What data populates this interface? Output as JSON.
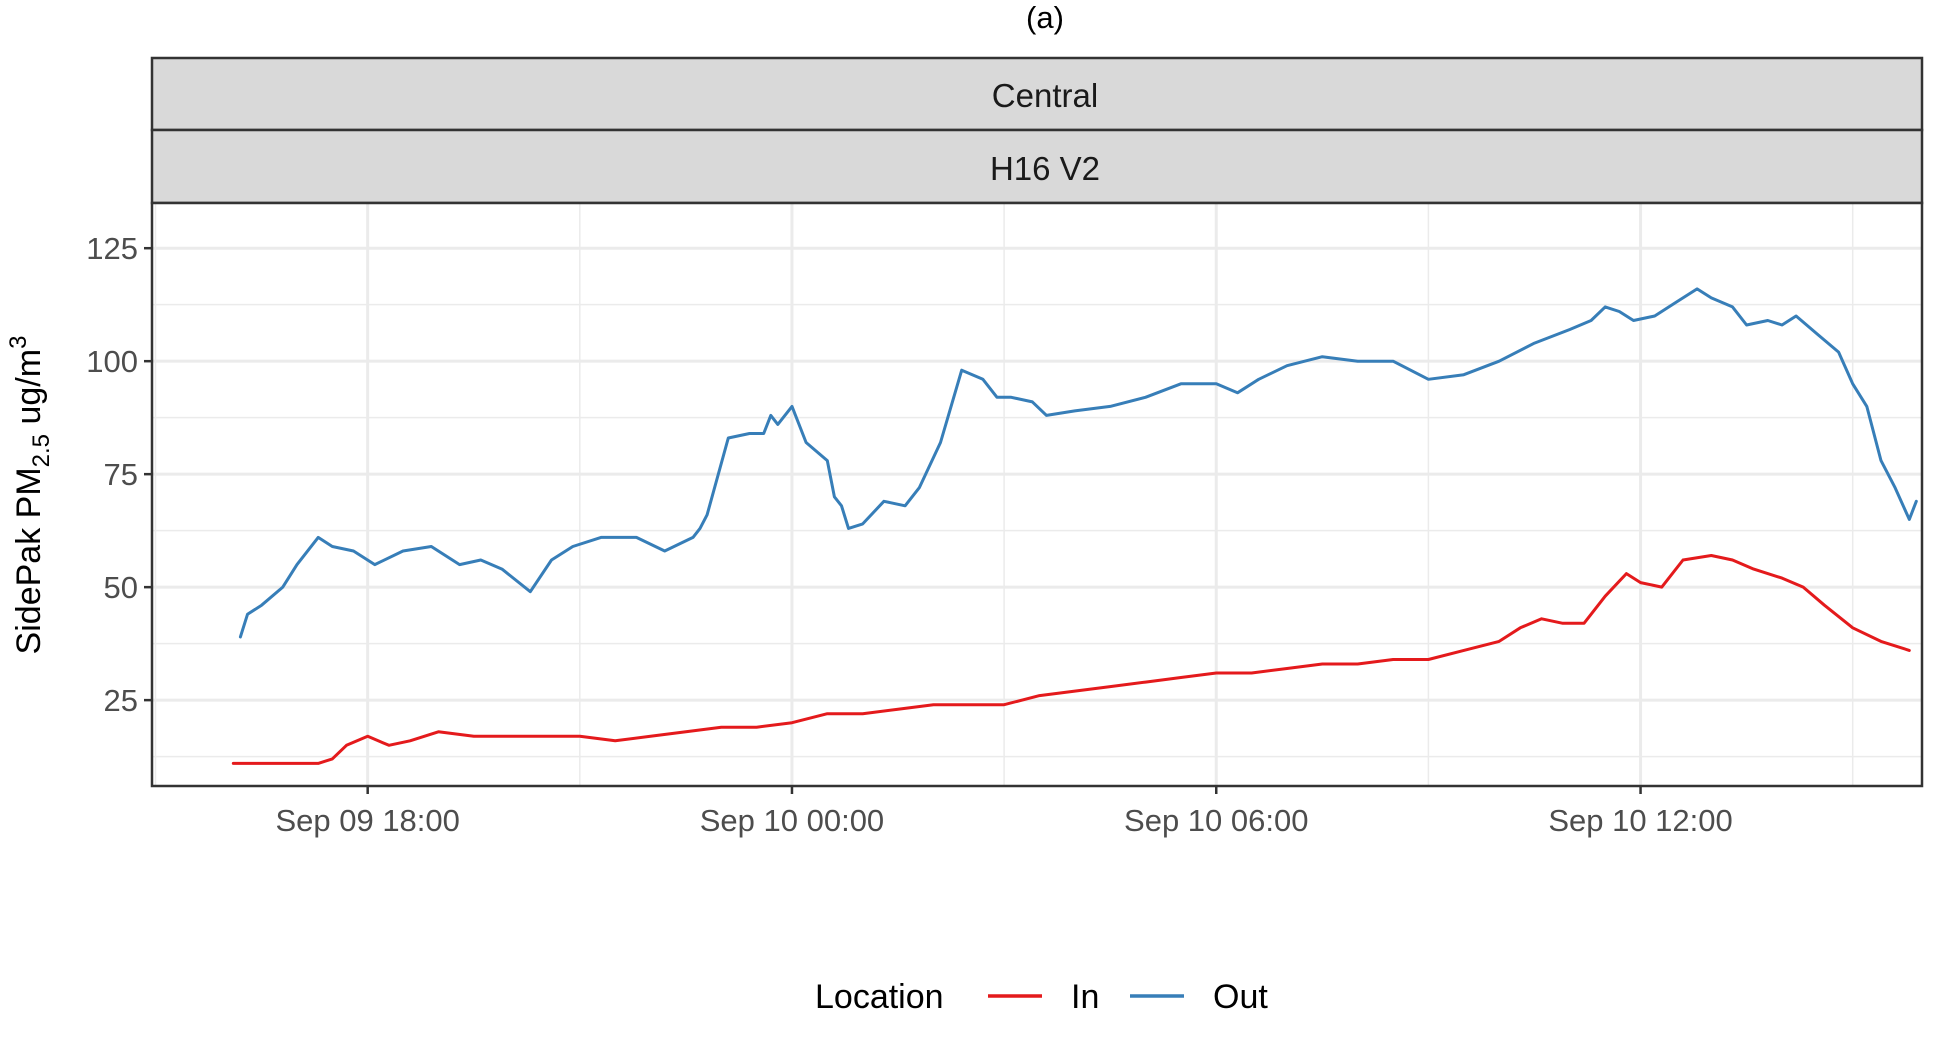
{
  "chart_data": {
    "type": "line",
    "title": "(a)",
    "facet_labels": [
      "Central",
      "H16 V2"
    ],
    "ylabel": {
      "main": "SidePak PM",
      "sub": "2.5",
      "unit": " ug/m",
      "sup": "3"
    },
    "y_ticks": [
      25,
      50,
      75,
      100,
      125
    ],
    "ylim": [
      6,
      135
    ],
    "x_ticks": [
      {
        "x": 18,
        "label": "Sep 09 18:00"
      },
      {
        "x": 24,
        "label": "Sep 10 00:00"
      },
      {
        "x": 30,
        "label": "Sep 10 06:00"
      },
      {
        "x": 36,
        "label": "Sep 10 12:00"
      }
    ],
    "xlim": [
      14.95,
      39.98
    ],
    "x_unit": "hours since Sep 09 00:00",
    "legend": {
      "title": "Location",
      "position": "bottom"
    },
    "grid": true,
    "series": [
      {
        "name": "Out",
        "color": "#377EB8",
        "x": [
          16.2,
          16.3,
          16.5,
          16.8,
          17.0,
          17.3,
          17.5,
          17.8,
          18.1,
          18.5,
          18.9,
          19.3,
          19.6,
          19.9,
          20.3,
          20.6,
          20.9,
          21.3,
          21.8,
          22.2,
          22.6,
          22.7,
          22.8,
          23.1,
          23.4,
          23.6,
          23.7,
          23.8,
          24.0,
          24.2,
          24.5,
          24.6,
          24.7,
          24.8,
          25.0,
          25.3,
          25.6,
          25.8,
          26.1,
          26.4,
          26.7,
          26.9,
          27.1,
          27.4,
          27.6,
          28.0,
          28.5,
          29.0,
          29.5,
          30.0,
          30.3,
          30.6,
          31.0,
          31.5,
          32.0,
          32.5,
          33.0,
          33.5,
          34.0,
          34.5,
          35.0,
          35.3,
          35.5,
          35.7,
          35.9,
          36.2,
          36.5,
          36.8,
          37.0,
          37.3,
          37.5,
          37.8,
          38.0,
          38.2,
          38.5,
          38.8,
          39.0,
          39.2,
          39.4,
          39.6,
          39.8,
          39.9
        ],
        "y": [
          39,
          44,
          46,
          50,
          55,
          61,
          59,
          58,
          55,
          58,
          59,
          55,
          56,
          54,
          49,
          56,
          59,
          61,
          61,
          58,
          61,
          63,
          66,
          83,
          84,
          84,
          88,
          86,
          90,
          82,
          78,
          70,
          68,
          63,
          64,
          69,
          68,
          72,
          82,
          98,
          96,
          92,
          92,
          91,
          88,
          89,
          90,
          92,
          95,
          95,
          93,
          96,
          99,
          101,
          100,
          100,
          96,
          97,
          100,
          104,
          107,
          109,
          112,
          111,
          109,
          110,
          113,
          116,
          114,
          112,
          108,
          109,
          108,
          110,
          106,
          102,
          95,
          90,
          78,
          72,
          65,
          69
        ]
      },
      {
        "name": "In",
        "color": "#E41A1C",
        "x": [
          16.1,
          16.5,
          16.9,
          17.3,
          17.5,
          17.7,
          18.0,
          18.3,
          18.6,
          19.0,
          19.5,
          20.0,
          20.5,
          21.0,
          21.5,
          22.0,
          22.5,
          23.0,
          23.5,
          24.0,
          24.5,
          25.0,
          25.5,
          26.0,
          26.5,
          27.0,
          27.5,
          28.0,
          28.5,
          29.0,
          29.5,
          30.0,
          30.5,
          31.0,
          31.5,
          32.0,
          32.5,
          33.0,
          33.5,
          34.0,
          34.3,
          34.6,
          34.9,
          35.2,
          35.5,
          35.8,
          36.0,
          36.3,
          36.6,
          37.0,
          37.3,
          37.6,
          38.0,
          38.3,
          38.6,
          39.0,
          39.4,
          39.8
        ],
        "y": [
          11,
          11,
          11,
          11,
          12,
          15,
          17,
          15,
          16,
          18,
          17,
          17,
          17,
          17,
          16,
          17,
          18,
          19,
          19,
          20,
          22,
          22,
          23,
          24,
          24,
          24,
          26,
          27,
          28,
          29,
          30,
          31,
          31,
          32,
          33,
          33,
          34,
          34,
          36,
          38,
          41,
          43,
          42,
          42,
          48,
          53,
          51,
          50,
          56,
          57,
          56,
          54,
          52,
          50,
          46,
          41,
          38,
          36
        ]
      }
    ]
  }
}
